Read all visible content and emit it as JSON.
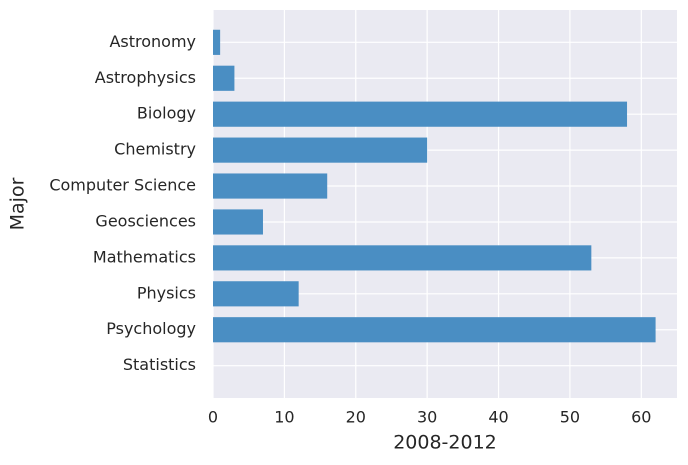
{
  "chart_data": {
    "type": "barh",
    "categories": [
      "Astronomy",
      "Astrophysics",
      "Biology",
      "Chemistry",
      "Computer Science",
      "Geosciences",
      "Mathematics",
      "Physics",
      "Psychology",
      "Statistics"
    ],
    "values": [
      1,
      3,
      58,
      30,
      16,
      7,
      53,
      12,
      62,
      0
    ],
    "color": "#4a8ec3",
    "x_label": "2008-2012",
    "y_label": "Major",
    "xlim": [
      0,
      65
    ],
    "xticks": [
      0,
      10,
      20,
      30,
      40,
      50,
      60
    ],
    "grid": true
  }
}
